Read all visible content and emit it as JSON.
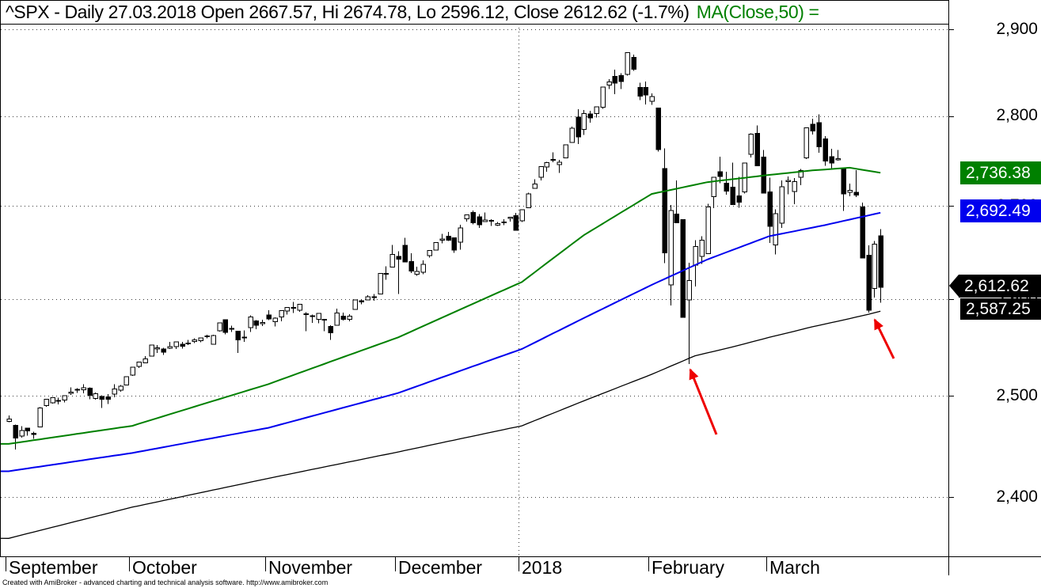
{
  "title": {
    "text_black": "^SPX - Daily 27.03.2018 Open 2667.57, Hi 2674.78, Lo 2596.12, Close 2612.62 (-1.7%)",
    "text_green": "MA(Close,50) ="
  },
  "colors": {
    "up_candle": "#ffffff",
    "down_candle": "#000000",
    "ma_green": "#008000",
    "ma_blue": "#0000ee",
    "ma_black": "#000000",
    "arrow": "#ee0000",
    "marker_text": "#ffffff"
  },
  "y_axis": {
    "ticks": [
      {
        "label": "2,900",
        "value": 2900
      },
      {
        "label": "2,800",
        "value": 2800
      },
      {
        "label": "2,700",
        "value": 2700
      },
      {
        "label": "2,600",
        "value": 2600
      },
      {
        "label": "2,500",
        "value": 2500
      },
      {
        "label": "2,400",
        "value": 2400
      }
    ]
  },
  "price_markers": [
    {
      "id": "ma-green-value",
      "label": "2,736.38",
      "value": 2736.38,
      "color": "#008000"
    },
    {
      "id": "ma-blue-value",
      "label": "2,692.49",
      "value": 2692.49,
      "color": "#0000ee"
    },
    {
      "id": "last-close-value",
      "label": "2,612.62",
      "value": 2612.62,
      "color": "#000000",
      "pointer": true
    },
    {
      "id": "ma-black-value",
      "label": "2,587.25",
      "value": 2587.25,
      "color": "#000000"
    }
  ],
  "x_axis": {
    "months": [
      {
        "label": "September",
        "index": 0
      },
      {
        "label": "October",
        "index": 20
      },
      {
        "label": "November",
        "index": 42
      },
      {
        "label": "December",
        "index": 63
      },
      {
        "label": "2018",
        "index": 83,
        "gridline": true
      },
      {
        "label": "February",
        "index": 104
      },
      {
        "label": "March",
        "index": 123
      }
    ]
  },
  "footer": "Created with AmiBroker - advanced charting and technical analysis software. http://www.amibroker.com",
  "chart_data": {
    "type": "candlestick",
    "symbol": "^SPX",
    "interval": "Daily",
    "scale": "log",
    "last_bar": {
      "date": "27.03.2018",
      "open": 2667.57,
      "high": 2674.78,
      "low": 2596.12,
      "close": 2612.62,
      "change_pct": -1.7
    },
    "gridlines": [
      2400,
      2500,
      2600,
      2700,
      2800,
      2900
    ],
    "ohlc": [
      [
        "1.09",
        2474.4,
        2480.4,
        2473.8,
        2476.6
      ],
      [
        "5.09",
        2470.4,
        2471.4,
        2446.6,
        2457.9
      ],
      [
        "6.09",
        2459.7,
        2469.8,
        2458.1,
        2465.5
      ],
      [
        "7.09",
        2467.6,
        2468.2,
        2460.2,
        2465.1
      ],
      [
        "8.09",
        2462.7,
        2464.3,
        2457.0,
        2461.4
      ],
      [
        "11.09",
        2469.0,
        2488.6,
        2468.9,
        2488.1
      ],
      [
        "12.09",
        2490.5,
        2497.0,
        2489.0,
        2496.5
      ],
      [
        "13.09",
        2493.2,
        2498.4,
        2492.1,
        2498.4
      ],
      [
        "14.09",
        2494.9,
        2498.4,
        2491.4,
        2495.6
      ],
      [
        "15.09",
        2495.7,
        2500.7,
        2493.6,
        2500.2
      ],
      [
        "18.09",
        2502.5,
        2508.9,
        2501.0,
        2503.9
      ],
      [
        "19.09",
        2506.0,
        2507.8,
        2503.2,
        2506.7
      ],
      [
        "20.09",
        2506.4,
        2512.0,
        2502.6,
        2508.2
      ],
      [
        "21.09",
        2508.1,
        2508.6,
        2496.5,
        2500.6
      ],
      [
        "22.09",
        2497.5,
        2503.4,
        2496.1,
        2502.2
      ],
      [
        "25.09",
        2499.4,
        2500.5,
        2488.0,
        2496.7
      ],
      [
        "26.09",
        2499.1,
        2501.8,
        2491.7,
        2496.8
      ],
      [
        "27.09",
        2501.8,
        2511.8,
        2498.8,
        2507.0
      ],
      [
        "28.09",
        2506.1,
        2511.2,
        2504.4,
        2510.1
      ],
      [
        "29.09",
        2511.1,
        2519.4,
        2511.1,
        2519.4
      ],
      [
        "2.10",
        2521.2,
        2529.2,
        2520.4,
        2529.1
      ],
      [
        "3.10",
        2530.3,
        2535.1,
        2528.6,
        2534.6
      ],
      [
        "4.10",
        2533.9,
        2540.5,
        2533.3,
        2537.7
      ],
      [
        "5.10",
        2540.6,
        2552.5,
        2540.6,
        2552.1
      ],
      [
        "6.10",
        2547.9,
        2552.2,
        2543.8,
        2549.3
      ],
      [
        "9.10",
        2548.1,
        2549.1,
        2541.7,
        2544.7
      ],
      [
        "10.10",
        2549.0,
        2555.2,
        2547.8,
        2550.6
      ],
      [
        "11.10",
        2550.6,
        2555.6,
        2547.9,
        2555.2
      ],
      [
        "12.10",
        2552.9,
        2555.3,
        2548.6,
        2550.9
      ],
      [
        "13.10",
        2554.2,
        2557.6,
        2552.2,
        2553.2
      ],
      [
        "16.10",
        2555.8,
        2559.2,
        2554.0,
        2557.6
      ],
      [
        "17.10",
        2556.6,
        2559.6,
        2554.8,
        2559.4
      ],
      [
        "18.10",
        2561.7,
        2562.6,
        2559.2,
        2561.3
      ],
      [
        "19.10",
        2553.0,
        2562.8,
        2552.4,
        2562.1
      ],
      [
        "20.10",
        2567.0,
        2575.4,
        2565.9,
        2575.2
      ],
      [
        "23.10",
        2578.2,
        2578.3,
        2563.0,
        2565.0
      ],
      [
        "24.10",
        2568.4,
        2572.0,
        2565.6,
        2569.1
      ],
      [
        "25.10",
        2566.5,
        2567.0,
        2544.0,
        2557.2
      ],
      [
        "26.10",
        2560.1,
        2567.3,
        2555.5,
        2560.4
      ],
      [
        "27.10",
        2570.3,
        2582.9,
        2565.8,
        2581.1
      ],
      [
        "30.10",
        2577.0,
        2577.8,
        2568.3,
        2572.8
      ],
      [
        "31.10",
        2574.4,
        2578.3,
        2571.9,
        2575.3
      ],
      [
        "1.11",
        2583.2,
        2588.4,
        2578.0,
        2579.4
      ],
      [
        "2.11",
        2576.2,
        2581.0,
        2571.2,
        2579.9
      ],
      [
        "3.11",
        2581.4,
        2588.4,
        2576.9,
        2587.8
      ],
      [
        "6.11",
        2587.5,
        2591.4,
        2583.8,
        2591.1
      ],
      [
        "7.11",
        2591.4,
        2597.0,
        2585.4,
        2590.6
      ],
      [
        "8.11",
        2588.5,
        2595.0,
        2586.6,
        2594.4
      ],
      [
        "9.11",
        2584.2,
        2586.3,
        2566.3,
        2584.6
      ],
      [
        "10.11",
        2581.5,
        2583.8,
        2575.1,
        2582.3
      ],
      [
        "13.11",
        2578.6,
        2585.2,
        2574.6,
        2584.8
      ],
      [
        "14.11",
        2578.0,
        2579.3,
        2566.6,
        2578.9
      ],
      [
        "15.11",
        2571.2,
        2572.8,
        2557.4,
        2564.6
      ],
      [
        "16.11",
        2572.4,
        2590.1,
        2572.4,
        2585.6
      ],
      [
        "17.11",
        2582.2,
        2586.0,
        2577.6,
        2578.9
      ],
      [
        "20.11",
        2578.9,
        2584.1,
        2576.7,
        2582.1
      ],
      [
        "21.11",
        2589.1,
        2599.2,
        2589.1,
        2599.0
      ],
      [
        "22.11",
        2598.1,
        2599.6,
        2594.7,
        2597.1
      ],
      [
        "24.11",
        2599.1,
        2604.2,
        2599.1,
        2602.4
      ],
      [
        "27.11",
        2602.6,
        2605.5,
        2598.2,
        2601.4
      ],
      [
        "28.11",
        2605.5,
        2627.7,
        2605.0,
        2627.0
      ],
      [
        "29.11",
        2627.0,
        2634.9,
        2620.3,
        2626.1
      ],
      [
        "30.11",
        2633.9,
        2657.7,
        2633.9,
        2647.6
      ],
      [
        "1.12",
        2645.1,
        2650.6,
        2605.5,
        2642.2
      ],
      [
        "4.12",
        2657.2,
        2665.2,
        2639.0,
        2639.4
      ],
      [
        "5.12",
        2639.8,
        2648.7,
        2627.7,
        2629.6
      ],
      [
        "6.12",
        2626.2,
        2634.4,
        2624.8,
        2629.3
      ],
      [
        "7.12",
        2628.4,
        2641.0,
        2626.5,
        2637.0
      ],
      [
        "8.12",
        2646.2,
        2651.6,
        2644.1,
        2651.5
      ],
      [
        "11.12",
        2652.2,
        2660.3,
        2651.6,
        2660.0
      ],
      [
        "12.12",
        2662.6,
        2669.7,
        2659.4,
        2664.1
      ],
      [
        "13.12",
        2667.0,
        2671.9,
        2662.0,
        2662.9
      ],
      [
        "14.12",
        2665.1,
        2665.3,
        2649.1,
        2652.0
      ],
      [
        "15.12",
        2660.8,
        2679.6,
        2652.4,
        2675.8
      ],
      [
        "18.12",
        2685.9,
        2690.4,
        2682.7,
        2690.2
      ],
      [
        "19.12",
        2692.7,
        2695.0,
        2680.0,
        2681.5
      ],
      [
        "20.12",
        2688.0,
        2691.0,
        2676.1,
        2679.3
      ],
      [
        "21.12",
        2683.0,
        2692.6,
        2682.4,
        2684.6
      ],
      [
        "22.12",
        2684.2,
        2685.4,
        2678.0,
        2683.3
      ],
      [
        "26.12",
        2679.1,
        2682.3,
        2678.0,
        2680.5
      ],
      [
        "27.12",
        2682.1,
        2685.6,
        2678.9,
        2682.6
      ],
      [
        "28.12",
        2686.1,
        2687.7,
        2682.7,
        2687.5
      ],
      [
        "29.12",
        2689.2,
        2692.1,
        2673.6,
        2673.6
      ],
      [
        "2.01",
        2683.7,
        2695.9,
        2682.4,
        2695.8
      ],
      [
        "3.01",
        2697.9,
        2714.4,
        2697.8,
        2713.1
      ],
      [
        "4.01",
        2719.3,
        2729.3,
        2719.1,
        2724.0
      ],
      [
        "5.01",
        2731.3,
        2743.5,
        2727.9,
        2743.2
      ],
      [
        "8.01",
        2742.7,
        2748.5,
        2737.6,
        2747.7
      ],
      [
        "9.01",
        2751.2,
        2759.1,
        2747.9,
        2751.3
      ],
      [
        "10.01",
        2745.6,
        2750.8,
        2736.1,
        2748.2
      ],
      [
        "11.01",
        2752.9,
        2767.6,
        2752.8,
        2767.6
      ],
      [
        "12.01",
        2770.2,
        2787.9,
        2769.6,
        2786.2
      ],
      [
        "16.01",
        2798.9,
        2807.5,
        2768.6,
        2776.4
      ],
      [
        "17.01",
        2784.9,
        2807.0,
        2778.4,
        2802.6
      ],
      [
        "18.01",
        2802.4,
        2805.8,
        2792.6,
        2798.0
      ],
      [
        "19.01",
        2802.6,
        2810.3,
        2798.1,
        2810.3
      ],
      [
        "22.01",
        2809.8,
        2833.0,
        2808.1,
        2833.0
      ],
      [
        "23.01",
        2835.1,
        2842.2,
        2830.6,
        2839.1
      ],
      [
        "24.01",
        2845.4,
        2853.0,
        2824.8,
        2837.5
      ],
      [
        "25.01",
        2846.2,
        2848.9,
        2830.9,
        2839.3
      ],
      [
        "26.01",
        2847.5,
        2872.9,
        2846.2,
        2872.9
      ],
      [
        "29.01",
        2867.2,
        2870.6,
        2851.5,
        2853.5
      ],
      [
        "30.01",
        2832.7,
        2837.8,
        2818.0,
        2822.4
      ],
      [
        "31.01",
        2832.4,
        2839.3,
        2813.0,
        2823.8
      ],
      [
        "1.02",
        2816.5,
        2825.8,
        2812.7,
        2822.0
      ],
      [
        "2.02",
        2808.9,
        2808.9,
        2760.0,
        2762.1
      ],
      [
        "5.02",
        2741.1,
        2763.4,
        2638.2,
        2648.9
      ],
      [
        "6.02",
        2614.8,
        2701.0,
        2593.1,
        2695.1
      ],
      [
        "7.02",
        2691.0,
        2727.7,
        2681.3,
        2681.7
      ],
      [
        "8.02",
        2685.0,
        2685.3,
        2580.6,
        2581.0
      ],
      [
        "9.02",
        2599.0,
        2638.7,
        2532.7,
        2619.6
      ],
      [
        "12.02",
        2636.0,
        2662.7,
        2613.2,
        2656.0
      ],
      [
        "13.02",
        2645.1,
        2666.9,
        2637.1,
        2662.9
      ],
      [
        "14.02",
        2648.2,
        2702.1,
        2648.2,
        2698.6
      ],
      [
        "15.02",
        2710.0,
        2731.5,
        2697.7,
        2731.2
      ],
      [
        "16.02",
        2737.6,
        2754.4,
        2725.0,
        2732.2
      ],
      [
        "20.02",
        2725.0,
        2737.5,
        2712.1,
        2716.3
      ],
      [
        "21.02",
        2720.3,
        2747.8,
        2701.0,
        2701.3
      ],
      [
        "22.02",
        2710.8,
        2731.9,
        2697.8,
        2704.0
      ],
      [
        "23.02",
        2715.2,
        2747.6,
        2713.7,
        2747.3
      ],
      [
        "26.02",
        2757.0,
        2780.6,
        2753.4,
        2779.6
      ],
      [
        "27.02",
        2780.5,
        2789.2,
        2744.1,
        2744.3
      ],
      [
        "28.02",
        2753.8,
        2761.7,
        2713.5,
        2713.8
      ],
      [
        "1.03",
        2715.2,
        2730.8,
        2659.6,
        2677.7
      ],
      [
        "2.03",
        2657.8,
        2696.3,
        2647.3,
        2691.3
      ],
      [
        "5.03",
        2681.0,
        2728.1,
        2675.8,
        2720.9
      ],
      [
        "6.03",
        2726.6,
        2732.1,
        2712.5,
        2728.1
      ],
      [
        "7.03",
        2715.7,
        2730.6,
        2701.7,
        2726.8
      ],
      [
        "8.03",
        2731.6,
        2740.4,
        2722.5,
        2739.0
      ],
      [
        "9.03",
        2752.9,
        2786.6,
        2751.5,
        2786.6
      ],
      [
        "12.03",
        2790.5,
        2797.0,
        2779.0,
        2783.0
      ],
      [
        "13.03",
        2792.4,
        2801.9,
        2758.7,
        2765.3
      ],
      [
        "14.03",
        2774.2,
        2777.1,
        2744.0,
        2749.5
      ],
      [
        "15.03",
        2754.2,
        2763.1,
        2741.5,
        2747.3
      ],
      [
        "16.03",
        2750.6,
        2761.9,
        2749.9,
        2752.0
      ],
      [
        "19.03",
        2741.4,
        2741.4,
        2694.5,
        2712.9
      ],
      [
        "20.03",
        2715.0,
        2724.3,
        2710.3,
        2716.9
      ],
      [
        "21.03",
        2714.9,
        2739.1,
        2709.8,
        2711.9
      ],
      [
        "22.03",
        2699.0,
        2703.6,
        2643.6,
        2643.7
      ],
      [
        "23.03",
        2646.7,
        2657.3,
        2585.9,
        2588.3
      ],
      [
        "26.03",
        2611.0,
        2661.9,
        2601.6,
        2658.6
      ],
      [
        "27.03",
        2667.57,
        2674.78,
        2596.12,
        2612.62
      ]
    ],
    "overlays": [
      {
        "id": "ma-green",
        "label": "MA(Close,50)",
        "color": "#008000",
        "width": 2,
        "end_value": 2736.38,
        "points": [
          [
            0,
            2452
          ],
          [
            20,
            2470
          ],
          [
            42,
            2512
          ],
          [
            63,
            2560
          ],
          [
            83,
            2618
          ],
          [
            93,
            2668
          ],
          [
            104,
            2713
          ],
          [
            113,
            2726
          ],
          [
            123,
            2734
          ],
          [
            130,
            2739
          ],
          [
            136,
            2742
          ],
          [
            141,
            2736.4
          ]
        ]
      },
      {
        "id": "ma-blue",
        "label": "",
        "color": "#0000ee",
        "width": 2,
        "end_value": 2692.49,
        "points": [
          [
            0,
            2425
          ],
          [
            20,
            2443
          ],
          [
            42,
            2468
          ],
          [
            63,
            2503
          ],
          [
            83,
            2548
          ],
          [
            93,
            2580
          ],
          [
            104,
            2615
          ],
          [
            113,
            2642
          ],
          [
            123,
            2667
          ],
          [
            132,
            2679
          ],
          [
            141,
            2692.5
          ]
        ]
      },
      {
        "id": "ma-black",
        "label": "",
        "color": "#000000",
        "width": 1.3,
        "end_value": 2587.25,
        "points": [
          [
            0,
            2360
          ],
          [
            20,
            2390
          ],
          [
            42,
            2418
          ],
          [
            63,
            2444
          ],
          [
            83,
            2470
          ],
          [
            93,
            2495
          ],
          [
            104,
            2522
          ],
          [
            111,
            2541
          ],
          [
            117,
            2550
          ],
          [
            123,
            2560
          ],
          [
            130,
            2571
          ],
          [
            135,
            2578
          ],
          [
            139,
            2584
          ],
          [
            141,
            2587.3
          ]
        ]
      }
    ],
    "arrows": [
      {
        "from": [
          905,
          549
        ],
        "to": [
          872,
          467
        ]
      },
      {
        "from": [
          1129,
          453
        ],
        "to": [
          1105,
          404
        ]
      }
    ]
  }
}
